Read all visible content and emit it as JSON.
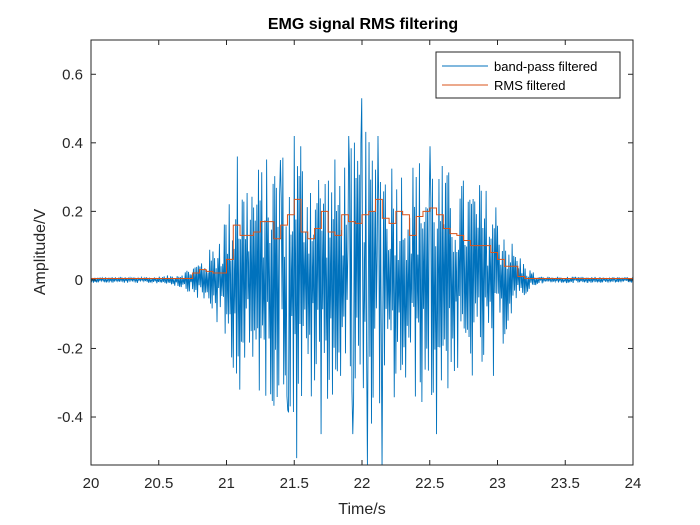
{
  "chart_data": {
    "type": "line",
    "title": "EMG signal RMS filtering",
    "xlabel": "Time/s",
    "ylabel": "Amplitude/V",
    "xlim": [
      20,
      24
    ],
    "ylim": [
      -0.54,
      0.7
    ],
    "xticks": [
      20,
      20.5,
      21,
      21.5,
      22,
      22.5,
      23,
      23.5,
      24
    ],
    "xtick_labels": [
      "20",
      "20.5",
      "21",
      "21.5",
      "22",
      "22.5",
      "23",
      "23.5",
      "24"
    ],
    "yticks": [
      -0.4,
      -0.2,
      0,
      0.2,
      0.4,
      0.6
    ],
    "ytick_labels": [
      "-0.4",
      "-0.2",
      "0",
      "0.2",
      "0.4",
      "0.6"
    ],
    "grid": false,
    "legend_location": "top-right",
    "series": [
      {
        "name": "band-pass filtered",
        "color": "#0072bd",
        "envelope": {
          "x": [
            20,
            20.5,
            20.6,
            20.7,
            20.8,
            20.9,
            21.0,
            21.1,
            21.2,
            21.3,
            21.4,
            21.5,
            21.6,
            21.7,
            21.8,
            21.9,
            22.0,
            22.1,
            22.2,
            22.3,
            22.4,
            22.5,
            22.6,
            22.7,
            22.8,
            22.9,
            23.0,
            23.1,
            23.2,
            23.3,
            24
          ],
          "amplitude": [
            0.008,
            0.01,
            0.015,
            0.03,
            0.06,
            0.1,
            0.22,
            0.3,
            0.33,
            0.36,
            0.38,
            0.42,
            0.38,
            0.34,
            0.36,
            0.38,
            0.44,
            0.42,
            0.38,
            0.35,
            0.36,
            0.38,
            0.34,
            0.3,
            0.3,
            0.28,
            0.24,
            0.12,
            0.05,
            0.01,
            0.008
          ]
        },
        "extremes": [
          {
            "x": 21.08,
            "y": 0.36
          },
          {
            "x": 21.1,
            "y": -0.32
          },
          {
            "x": 21.4,
            "y": 0.35
          },
          {
            "x": 21.45,
            "y": -0.38
          },
          {
            "x": 21.5,
            "y": 0.42
          },
          {
            "x": 21.52,
            "y": -0.52
          },
          {
            "x": 21.55,
            "y": 0.39
          },
          {
            "x": 21.7,
            "y": -0.45
          },
          {
            "x": 21.9,
            "y": 0.42
          },
          {
            "x": 21.93,
            "y": -0.45
          },
          {
            "x": 22.0,
            "y": 0.53
          },
          {
            "x": 22.04,
            "y": -0.54
          },
          {
            "x": 22.12,
            "y": 0.42
          },
          {
            "x": 22.15,
            "y": -0.55
          },
          {
            "x": 22.5,
            "y": 0.39
          },
          {
            "x": 22.55,
            "y": -0.45
          },
          {
            "x": 22.88,
            "y": 0.26
          },
          {
            "x": 22.97,
            "y": -0.28
          }
        ]
      },
      {
        "name": "RMS filtered",
        "color": "#d95319",
        "steps": {
          "x": [
            20,
            20.75,
            20.8,
            20.85,
            20.9,
            21.0,
            21.05,
            21.1,
            21.15,
            21.2,
            21.25,
            21.3,
            21.35,
            21.4,
            21.45,
            21.5,
            21.55,
            21.6,
            21.65,
            21.7,
            21.75,
            21.8,
            21.85,
            21.9,
            21.95,
            22.0,
            22.05,
            22.1,
            22.15,
            22.2,
            22.25,
            22.3,
            22.35,
            22.4,
            22.45,
            22.5,
            22.55,
            22.6,
            22.65,
            22.7,
            22.75,
            22.8,
            22.85,
            22.9,
            22.95,
            23.0,
            23.05,
            23.1,
            23.15,
            23.2,
            23.25,
            24
          ],
          "y": [
            0.004,
            0.02,
            0.03,
            0.025,
            0.02,
            0.06,
            0.16,
            0.13,
            0.13,
            0.14,
            0.17,
            0.17,
            0.12,
            0.16,
            0.19,
            0.235,
            0.14,
            0.12,
            0.15,
            0.2,
            0.14,
            0.13,
            0.19,
            0.17,
            0.165,
            0.19,
            0.2,
            0.235,
            0.18,
            0.165,
            0.2,
            0.19,
            0.13,
            0.185,
            0.2,
            0.21,
            0.19,
            0.15,
            0.135,
            0.13,
            0.115,
            0.1,
            0.1,
            0.1,
            0.08,
            0.06,
            0.04,
            0.04,
            0.01,
            0.004,
            0.004,
            0.004
          ]
        }
      }
    ]
  }
}
